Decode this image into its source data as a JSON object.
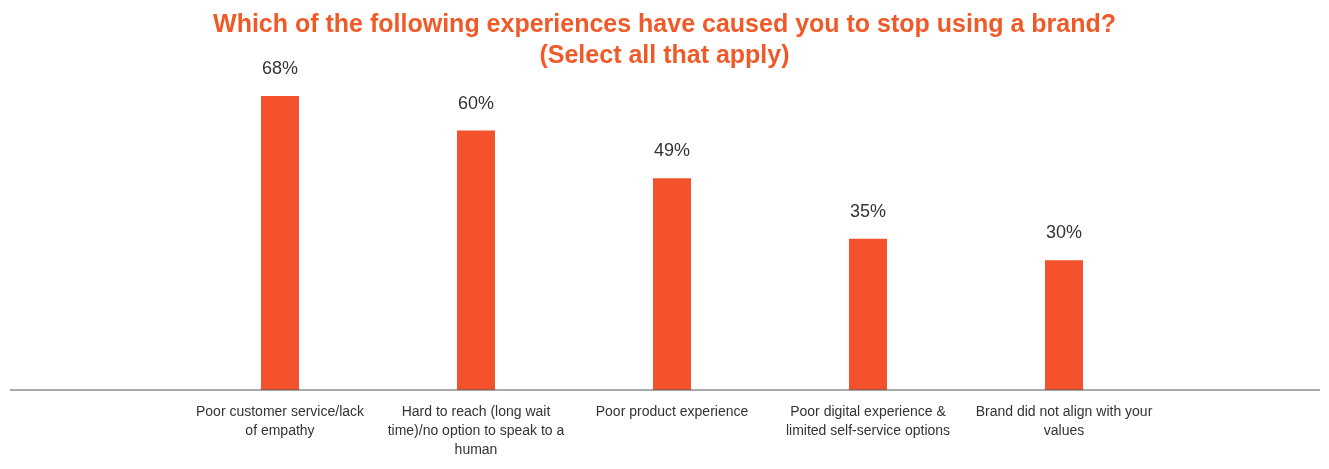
{
  "chart_data": {
    "type": "bar",
    "title": "Which of the following experiences have caused you to stop using a brand?",
    "subtitle": "(Select all that apply)",
    "categories": [
      "Poor customer service/lack of empathy",
      "Hard to reach (long wait time)/no option to speak to a human",
      "Poor product experience",
      "Poor digital experience & limited self-service options",
      "Brand did not align with your values"
    ],
    "values": [
      68,
      60,
      49,
      35,
      30
    ],
    "value_labels": [
      "68%",
      "60%",
      "49%",
      "35%",
      "30%"
    ],
    "color": "#f4522d",
    "grid": false,
    "legend": false
  }
}
